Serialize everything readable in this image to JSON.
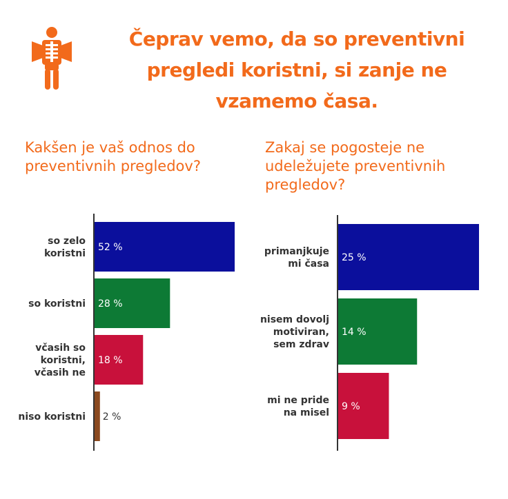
{
  "headline": "Čeprav vemo, da so preventivni pregledi koristni, si zanje ne vzamemo časa.",
  "icon": "x-ray-skeleton-icon",
  "colors": {
    "accent": "#f26a1b"
  },
  "chart_data": [
    {
      "type": "bar",
      "orientation": "horizontal",
      "title": "Kakšen je vaš odnos do preventivnih pregledov?",
      "categories": [
        [
          "so zelo",
          "koristni"
        ],
        [
          "so koristni"
        ],
        [
          "včasih so",
          "koristni,",
          "včasih ne"
        ],
        [
          "niso koristni"
        ]
      ],
      "values": [
        52,
        28,
        18,
        2
      ],
      "value_labels": [
        "52 %",
        "28 %",
        "18 %",
        "2 %"
      ],
      "colors": [
        "#0b0f9c",
        "#0d7a35",
        "#c8113b",
        "#8b4a20"
      ],
      "xlim": [
        0,
        52
      ]
    },
    {
      "type": "bar",
      "orientation": "horizontal",
      "title": "Zakaj se pogosteje ne udeležujete preventivnih pregledov?",
      "categories": [
        [
          "primanjkuje",
          "mi časa"
        ],
        [
          "nisem dovolj",
          "motiviran,",
          "sem zdrav"
        ],
        [
          "mi ne pride",
          "na misel"
        ]
      ],
      "values": [
        25,
        14,
        9
      ],
      "value_labels": [
        "25 %",
        "14 %",
        "9 %"
      ],
      "colors": [
        "#0b0f9c",
        "#0d7a35",
        "#c8113b"
      ],
      "xlim": [
        0,
        25
      ]
    }
  ]
}
